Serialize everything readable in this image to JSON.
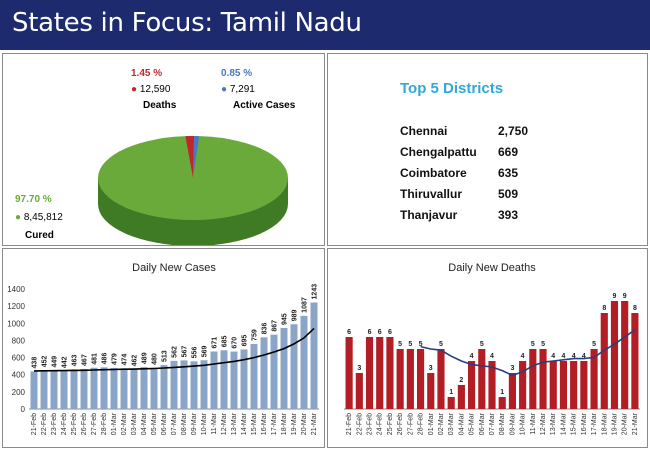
{
  "header": {
    "title": "States in Focus: Tamil Nadu"
  },
  "pie": {
    "slices": [
      {
        "label": "Cured",
        "percent": "97.70 %",
        "count": "8,45,812",
        "value": 845812,
        "color": "#6aaa3a"
      },
      {
        "label": "Deaths",
        "percent": "1.45 %",
        "count": "12,590",
        "value": 12590,
        "color": "#c0272d"
      },
      {
        "label": "Active Cases",
        "percent": "0.85 %",
        "count": "7,291",
        "value": 7291,
        "color": "#4a78c2"
      }
    ]
  },
  "top_districts": {
    "title": "Top 5 Districts",
    "rows": [
      {
        "name": "Chennai",
        "value": "2,750"
      },
      {
        "name": "Chengalpattu",
        "value": "669"
      },
      {
        "name": "Coimbatore",
        "value": "635"
      },
      {
        "name": "Thiruvallur",
        "value": "509"
      },
      {
        "name": "Thanjavur",
        "value": "393"
      }
    ]
  },
  "chart_data": [
    {
      "type": "bar",
      "title": "Daily New Cases",
      "categories": [
        "21-Feb",
        "22-Feb",
        "23-Feb",
        "24-Feb",
        "25-Feb",
        "26-Feb",
        "27-Feb",
        "28-Feb",
        "01-Mar",
        "02-Mar",
        "03-Mar",
        "04-Mar",
        "05-Mar",
        "06-Mar",
        "07-Mar",
        "08-Mar",
        "09-Mar",
        "10-Mar",
        "11-Mar",
        "12-Mar",
        "13-Mar",
        "14-Mar",
        "15-Mar",
        "16-Mar",
        "17-Mar",
        "18-Mar",
        "19-Mar",
        "20-Mar",
        "21-Mar"
      ],
      "values": [
        438,
        452,
        449,
        442,
        463,
        467,
        481,
        486,
        479,
        474,
        462,
        489,
        480,
        513,
        562,
        567,
        556,
        569,
        671,
        685,
        670,
        695,
        759,
        836,
        867,
        945,
        989,
        1087,
        1243
      ],
      "trendline": [
        445,
        446,
        447,
        448,
        450,
        452,
        455,
        458,
        461,
        464,
        466,
        469,
        473,
        478,
        485,
        492,
        500,
        510,
        525,
        540,
        555,
        575,
        600,
        630,
        665,
        705,
        760,
        830,
        940
      ],
      "ylim": [
        0,
        1400
      ],
      "yticks": [
        0,
        200,
        400,
        600,
        800,
        1000,
        1200,
        1400
      ],
      "bar_color": "#8aa5c8",
      "line_color": "#000000"
    },
    {
      "type": "bar",
      "title": "Daily New Deaths",
      "categories": [
        "21-Feb",
        "22-Feb",
        "23-Feb",
        "24-Feb",
        "25-Feb",
        "26-Feb",
        "27-Feb",
        "28-Feb",
        "01-Mar",
        "02-Mar",
        "03-Mar",
        "04-Mar",
        "05-Mar",
        "06-Mar",
        "07-Mar",
        "08-Mar",
        "09-Mar",
        "10-Mar",
        "11-Mar",
        "12-Mar",
        "13-Mar",
        "14-Mar",
        "15-Mar",
        "16-Mar",
        "17-Mar",
        "18-Mar",
        "19-Mar",
        "20-Mar",
        "21-Mar"
      ],
      "values": [
        6,
        3,
        6,
        6,
        6,
        5,
        5,
        5,
        3,
        5,
        1,
        2,
        4,
        5,
        4,
        1,
        3,
        4,
        5,
        5,
        4,
        4,
        4,
        4,
        5,
        8,
        9,
        9,
        8
      ],
      "trendline": [
        null,
        null,
        null,
        null,
        null,
        null,
        null,
        5.2,
        5.0,
        4.9,
        4.4,
        4.0,
        3.7,
        3.6,
        3.5,
        3.2,
        2.8,
        3.1,
        3.6,
        3.9,
        4.0,
        4.1,
        4.2,
        4.2,
        4.3,
        4.9,
        5.4,
        6.0,
        6.6
      ],
      "ylim": [
        0,
        10
      ],
      "bar_color": "#b31d24",
      "line_color": "#2a3f7a"
    }
  ]
}
